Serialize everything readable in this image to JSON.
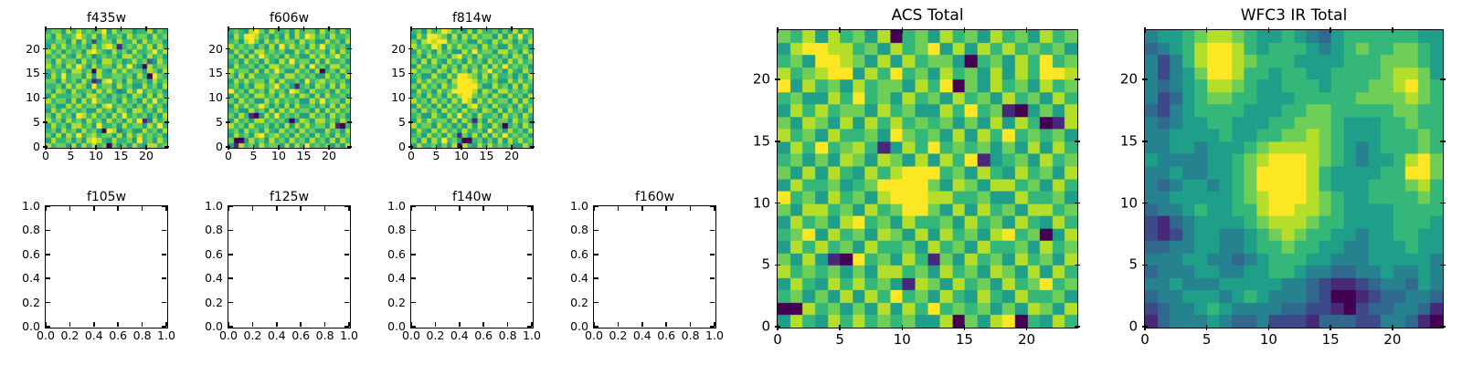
{
  "figure": {
    "background": "#ffffff",
    "description": "panel of astronomical image cutouts"
  },
  "colors": {
    "axis": "#000000",
    "text": "#000000",
    "viridis_levels": [
      "#440154",
      "#482878",
      "#3e4989",
      "#31688e",
      "#26828e",
      "#1f9e89",
      "#35b779",
      "#6ece58",
      "#b5de2b",
      "#fde725"
    ]
  },
  "chart_data": [
    {
      "id": "f435w",
      "type": "heatmap",
      "title": "f435w",
      "colormap": "viridis",
      "grid": false,
      "tick_direction": "inout",
      "xlim": [
        0,
        24
      ],
      "ylim": [
        0,
        24
      ],
      "x_ticks": [
        0,
        5,
        10,
        15,
        20
      ],
      "x_tick_labels": [
        "0",
        "5",
        "10",
        "15",
        "20"
      ],
      "y_ticks": [
        0,
        5,
        10,
        15,
        20
      ],
      "y_tick_labels": [
        "0",
        "5",
        "10",
        "15",
        "20"
      ],
      "value_encoding": "digits 0-9 map to viridis low-to-high; rows listed top (y=23) to bottom (y=0)",
      "rows": [
        "677586867679586775668576",
        "758667976858667586775867",
        "667758586267758668586775",
        "586867675868971676868586",
        "867576758976586758667968",
        "676865867467675886758675",
        "758677586758867568673586",
        "867586975867758696508677",
        "676758867086586867758758",
        "586967758586677675860976",
        "775867586138967586675867",
        "667586875967758675586758",
        "758758667586864586967675",
        "586667758867576758758586",
        "867758586976675867586967",
        "675586867758967675758675",
        "586867675586758758867586",
        "758675986867586967675758",
        "867586758675867586914867",
        "586758867596675867758696",
        "675867586750984675586758",
        "758586967867758586867675",
        "586675758986586675967586",
        "867758586867075758658867"
      ]
    },
    {
      "id": "f606w",
      "type": "heatmap",
      "title": "f606w",
      "colormap": "viridis",
      "grid": false,
      "tick_direction": "inout",
      "xlim": [
        0,
        24
      ],
      "ylim": [
        0,
        24
      ],
      "x_ticks": [
        0,
        5,
        10,
        15,
        20
      ],
      "x_tick_labels": [
        "0",
        "5",
        "10",
        "15",
        "20"
      ],
      "y_ticks": [
        0,
        5,
        10,
        15,
        20
      ],
      "y_tick_labels": [
        "0",
        "5",
        "10",
        "15",
        "20"
      ],
      "value_encoding": "digits 0-9 map to viridis low-to-high; rows listed top (y=23) to bottom (y=0)",
      "rows": [
        "676589758667586775867586",
        "586998675758586986758667",
        "675897586867758675586758",
        "867675758596867586967675",
        "586758867675586867758586",
        "758586976758675586867967",
        "675867586586967758586675",
        "586675758867758596758867",
        "867758586975586758067586",
        "758586667758867675586758",
        "586867758586675967867675",
        "675758867967516758758586",
        "967586758675986586675867",
        "586758867586758758586675",
        "758675586867675586967758",
        "586867975758586675758586",
        "675586758586867758586867",
        "758610586967675586758675",
        "586758867675058758867586",
        "867586675758586867758106",
        "675867586586758675586758",
        "586758967867586758675867",
        "700586758675867586758586",
        "518675867758586967675758"
      ]
    },
    {
      "id": "f814w",
      "type": "heatmap",
      "title": "f814w",
      "colormap": "viridis",
      "grid": false,
      "tick_direction": "inout",
      "xlim": [
        0,
        24
      ],
      "ylim": [
        0,
        24
      ],
      "x_ticks": [
        0,
        5,
        10,
        15,
        20
      ],
      "x_tick_labels": [
        "0",
        "5",
        "10",
        "15",
        "20"
      ],
      "y_ticks": [
        0,
        5,
        10,
        15,
        20
      ],
      "y_tick_labels": [
        "0",
        "5",
        "10",
        "15",
        "20"
      ],
      "value_encoding": "digits 0-9 map to viridis low-to-high; rows listed top (y=23) to bottom (y=0)",
      "rows": [
        "675867986758586675758586",
        "586998758586867758586967",
        "758989967675586586875758",
        "867698586867758675586675",
        "586758675586967758867586",
        "675867758967586675758758",
        "758586586758675867586867",
        "586675867586758586967675",
        "867758758675867967586586",
        "675586586998758586675758",
        "586867758999867675586867",
        "758675867999975586758586",
        "586758679999858758867675",
        "675867586899767586586758",
        "867586758698586867758586",
        "586758586758967586675867",
        "758675867586758758586758",
        "675586586967586675867586",
        "586867758586175867758675",
        "867758675758586586067586",
        "586586867586675967586758",
        "675867586175858586967675",
        "758586967500675758586867",
        "586675758086586867675586"
      ]
    },
    {
      "id": "f105w",
      "type": "empty",
      "title": "f105w",
      "grid": false,
      "tick_direction": "in",
      "xlim": [
        0,
        1
      ],
      "ylim": [
        0,
        1
      ],
      "x_ticks": [
        0,
        0.2,
        0.4,
        0.6,
        0.8,
        1.0
      ],
      "x_tick_labels": [
        "0.0",
        "0.2",
        "0.4",
        "0.6",
        "0.8",
        "1.0"
      ],
      "y_ticks": [
        0,
        0.2,
        0.4,
        0.6,
        0.8,
        1.0
      ],
      "y_tick_labels": [
        "0.0",
        "0.2",
        "0.4",
        "0.6",
        "0.8",
        "1.0"
      ]
    },
    {
      "id": "f125w",
      "type": "empty",
      "title": "f125w",
      "grid": false,
      "tick_direction": "in",
      "xlim": [
        0,
        1
      ],
      "ylim": [
        0,
        1
      ],
      "x_ticks": [
        0,
        0.2,
        0.4,
        0.6,
        0.8,
        1.0
      ],
      "x_tick_labels": [
        "0.0",
        "0.2",
        "0.4",
        "0.6",
        "0.8",
        "1.0"
      ],
      "y_ticks": [
        0,
        0.2,
        0.4,
        0.6,
        0.8,
        1.0
      ],
      "y_tick_labels": [
        "0.0",
        "0.2",
        "0.4",
        "0.6",
        "0.8",
        "1.0"
      ]
    },
    {
      "id": "f140w",
      "type": "empty",
      "title": "f140w",
      "grid": false,
      "tick_direction": "in",
      "xlim": [
        0,
        1
      ],
      "ylim": [
        0,
        1
      ],
      "x_ticks": [
        0,
        0.2,
        0.4,
        0.6,
        0.8,
        1.0
      ],
      "x_tick_labels": [
        "0.0",
        "0.2",
        "0.4",
        "0.6",
        "0.8",
        "1.0"
      ],
      "y_ticks": [
        0,
        0.2,
        0.4,
        0.6,
        0.8,
        1.0
      ],
      "y_tick_labels": [
        "0.0",
        "0.2",
        "0.4",
        "0.6",
        "0.8",
        "1.0"
      ]
    },
    {
      "id": "f160w",
      "type": "empty",
      "title": "f160w",
      "grid": false,
      "tick_direction": "in",
      "xlim": [
        0,
        1
      ],
      "ylim": [
        0,
        1
      ],
      "x_ticks": [
        0,
        0.2,
        0.4,
        0.6,
        0.8,
        1.0
      ],
      "x_tick_labels": [
        "0.0",
        "0.2",
        "0.4",
        "0.6",
        "0.8",
        "1.0"
      ],
      "y_ticks": [
        0,
        0.2,
        0.4,
        0.6,
        0.8,
        1.0
      ],
      "y_tick_labels": [
        "0.0",
        "0.2",
        "0.4",
        "0.6",
        "0.8",
        "1.0"
      ]
    },
    {
      "id": "acs_total",
      "type": "heatmap",
      "title": "ACS Total",
      "colormap": "viridis",
      "grid": false,
      "tick_direction": "inout",
      "xlim": [
        0,
        24
      ],
      "ylim": [
        0,
        24
      ],
      "x_ticks": [
        0,
        5,
        10,
        15,
        20
      ],
      "x_tick_labels": [
        "0",
        "5",
        "10",
        "15",
        "20"
      ],
      "y_ticks": [
        0,
        5,
        10,
        15,
        20
      ],
      "y_tick_labels": [
        "0",
        "5",
        "10",
        "15",
        "20"
      ],
      "value_encoding": "digits 0-9 map to viridis low-to-high; rows listed top (y=23) to bottom (y=0)",
      "rows": [
        "768586758067586758675867",
        "589988675867958586867675",
        "675998758586775067586967",
        "867899586967586758586998",
        "958675867758690758675867",
        "675586967586758675867586",
        "586867758675586967105758",
        "758758586867675758586018",
        "867586675976758586967675",
        "586967861586967675758586",
        "675758758758586915675867",
        "758586586899967586586758",
        "586675679999758758867586",
        "967586758999886675586675",
        "758867586799758586758867",
        "586758967586675867586586",
        "679586758758586758967058",
        "586867586675867586675867",
        "758510967586175867586758",
        "867675758867586758758586",
        "586586867518758675867967",
        "675758586967586586586675",
        "008675758586967675758758",
        "586586867675580758906586"
      ]
    },
    {
      "id": "wfc3_ir_total",
      "type": "heatmap",
      "title": "WFC3 IR Total",
      "colormap": "viridis",
      "grid": false,
      "tick_direction": "inout",
      "xlim": [
        0,
        24
      ],
      "ylim": [
        0,
        24
      ],
      "x_ticks": [
        0,
        5,
        10,
        15,
        20
      ],
      "x_tick_labels": [
        "0",
        "5",
        "10",
        "15",
        "20"
      ],
      "y_ticks": [
        0,
        5,
        10,
        15,
        20
      ],
      "y_tick_labels": [
        "0",
        "5",
        "10",
        "15",
        "20"
      ],
      "value_encoding": "digits 0-9 map to viridis low-to-high; rows listed top (y=23) to bottom (y=0)",
      "rows": [
        "455678876556543566666655",
        "345689986566654567667765",
        "424689987666555566677765",
        "424579986656655666678875",
        "434568876556665666778976",
        "423567766555666667777876",
        "324566665556677666667766",
        "434556655566777655566766",
        "445555655667787655566676",
        "445545556788887654566676",
        "544445567899987654556897",
        "445445567999986555566997",
        "434554567999986555666786",
        "445555567899987655666676",
        "344565566899887655556666",
        "213455556788876655556665",
        "212455445678766554556655",
        "334455445667665544555655",
        "444554434566655444555554",
        "344455445566544334454454",
        "445444555554432112344354",
        "344555456544432001233443",
        "234456544443322102334431",
        "134445433422213332244310"
      ]
    }
  ]
}
